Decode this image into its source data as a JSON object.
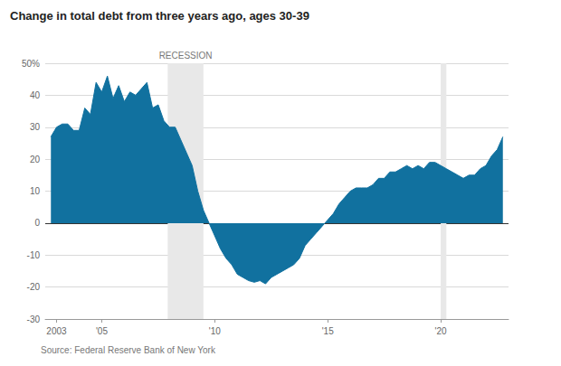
{
  "chart_data": {
    "type": "area",
    "title": "Change in total debt from three years ago, ages 30-39",
    "source": "Source: Federal Reserve Bank of New York",
    "color": "#11719f",
    "grid": true,
    "x": [
      2002.75,
      2003.0,
      2003.25,
      2003.5,
      2003.75,
      2004.0,
      2004.25,
      2004.5,
      2004.75,
      2005.0,
      2005.25,
      2005.5,
      2005.75,
      2006.0,
      2006.25,
      2006.5,
      2006.75,
      2007.0,
      2007.25,
      2007.5,
      2007.75,
      2008.0,
      2008.25,
      2008.5,
      2008.75,
      2009.0,
      2009.25,
      2009.5,
      2009.75,
      2010.0,
      2010.25,
      2010.5,
      2010.75,
      2011.0,
      2011.25,
      2011.5,
      2011.75,
      2012.0,
      2012.25,
      2012.5,
      2012.75,
      2013.0,
      2013.25,
      2013.5,
      2013.75,
      2014.0,
      2014.25,
      2014.5,
      2014.75,
      2015.0,
      2015.25,
      2015.5,
      2015.75,
      2016.0,
      2016.25,
      2016.5,
      2016.75,
      2017.0,
      2017.25,
      2017.5,
      2017.75,
      2018.0,
      2018.25,
      2018.5,
      2018.75,
      2019.0,
      2019.25,
      2019.5,
      2019.75,
      2020.0,
      2020.25,
      2020.5,
      2020.75,
      2021.0,
      2021.25,
      2021.5,
      2021.75,
      2022.0,
      2022.25,
      2022.5,
      2022.75
    ],
    "values": [
      27,
      30,
      31,
      31,
      29,
      29,
      36,
      34,
      44,
      41,
      46,
      39,
      43,
      38,
      41,
      40,
      42,
      44,
      36,
      37,
      32,
      30,
      30,
      26,
      22,
      18,
      10,
      4,
      0,
      -4,
      -8,
      -11,
      -13,
      -16,
      -17,
      -18,
      -18.5,
      -18,
      -19,
      -17,
      -16,
      -15,
      -14,
      -13,
      -11,
      -7,
      -5,
      -3,
      -1,
      1,
      3,
      6,
      8,
      10,
      11,
      11,
      11,
      12,
      14,
      14,
      16,
      16,
      17,
      18,
      17,
      18,
      17,
      19,
      19,
      18,
      17,
      16,
      15,
      14,
      15,
      15,
      17,
      18,
      21,
      23,
      27
    ],
    "xlim": [
      2002.5,
      2023
    ],
    "xticks": [
      {
        "value": 2003,
        "label": "2003"
      },
      {
        "value": 2005,
        "label": "'05"
      },
      {
        "value": 2010,
        "label": "'10"
      },
      {
        "value": 2015,
        "label": "'15"
      },
      {
        "value": 2020,
        "label": "'20"
      }
    ],
    "ylim": [
      -30,
      50
    ],
    "yticks": [
      -30,
      -20,
      -10,
      0,
      10,
      20,
      30,
      40,
      {
        "value": 50,
        "label": "50%"
      }
    ],
    "recessions": [
      {
        "start": 2007.92,
        "end": 2009.5,
        "label": "RECESSION"
      },
      {
        "start": 2020.0,
        "end": 2020.25
      }
    ]
  }
}
